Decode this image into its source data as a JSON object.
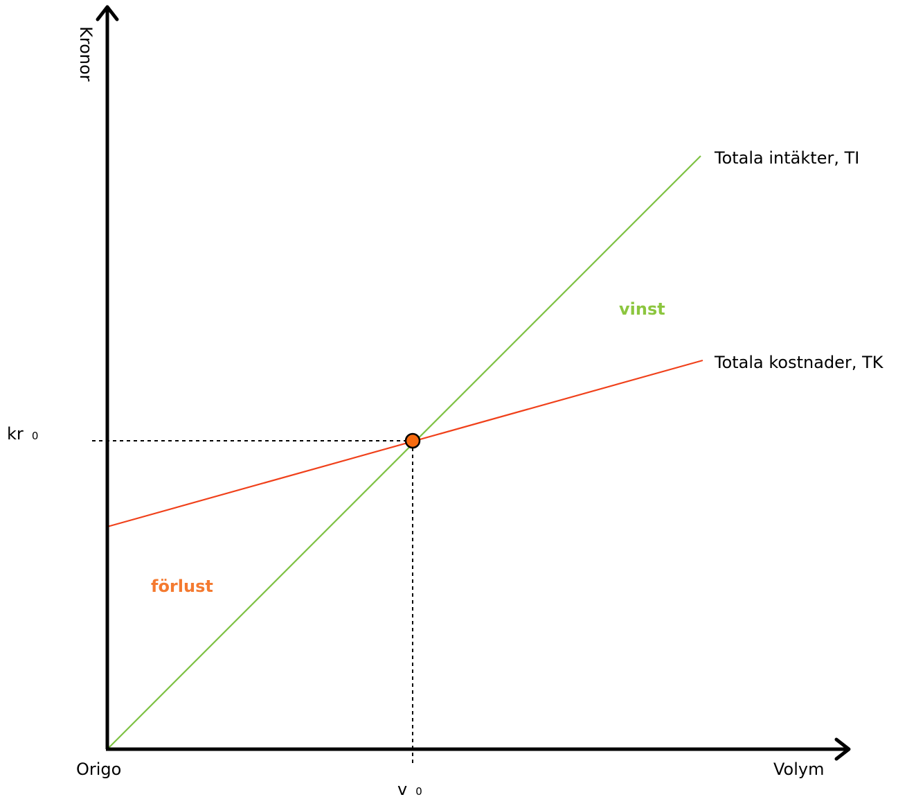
{
  "axes": {
    "y_label": "Kronor",
    "x_label": "Volym",
    "origin_label": "Origo"
  },
  "break_even": {
    "volume_label_main": "v",
    "volume_label_sub": "0",
    "kronor_label_main": "kr",
    "kronor_label_sub": "0"
  },
  "lines": {
    "revenue": {
      "label": "Totala intäkter, TI",
      "color": "#7dc142"
    },
    "cost": {
      "label": "Totala kostnader, TK",
      "color": "#f0401a"
    }
  },
  "regions": {
    "profit": {
      "label": "vinst",
      "color": "#8cc63f"
    },
    "loss": {
      "label": "förlust",
      "color": "#f47a30"
    }
  },
  "point_color": "#f76b10"
}
